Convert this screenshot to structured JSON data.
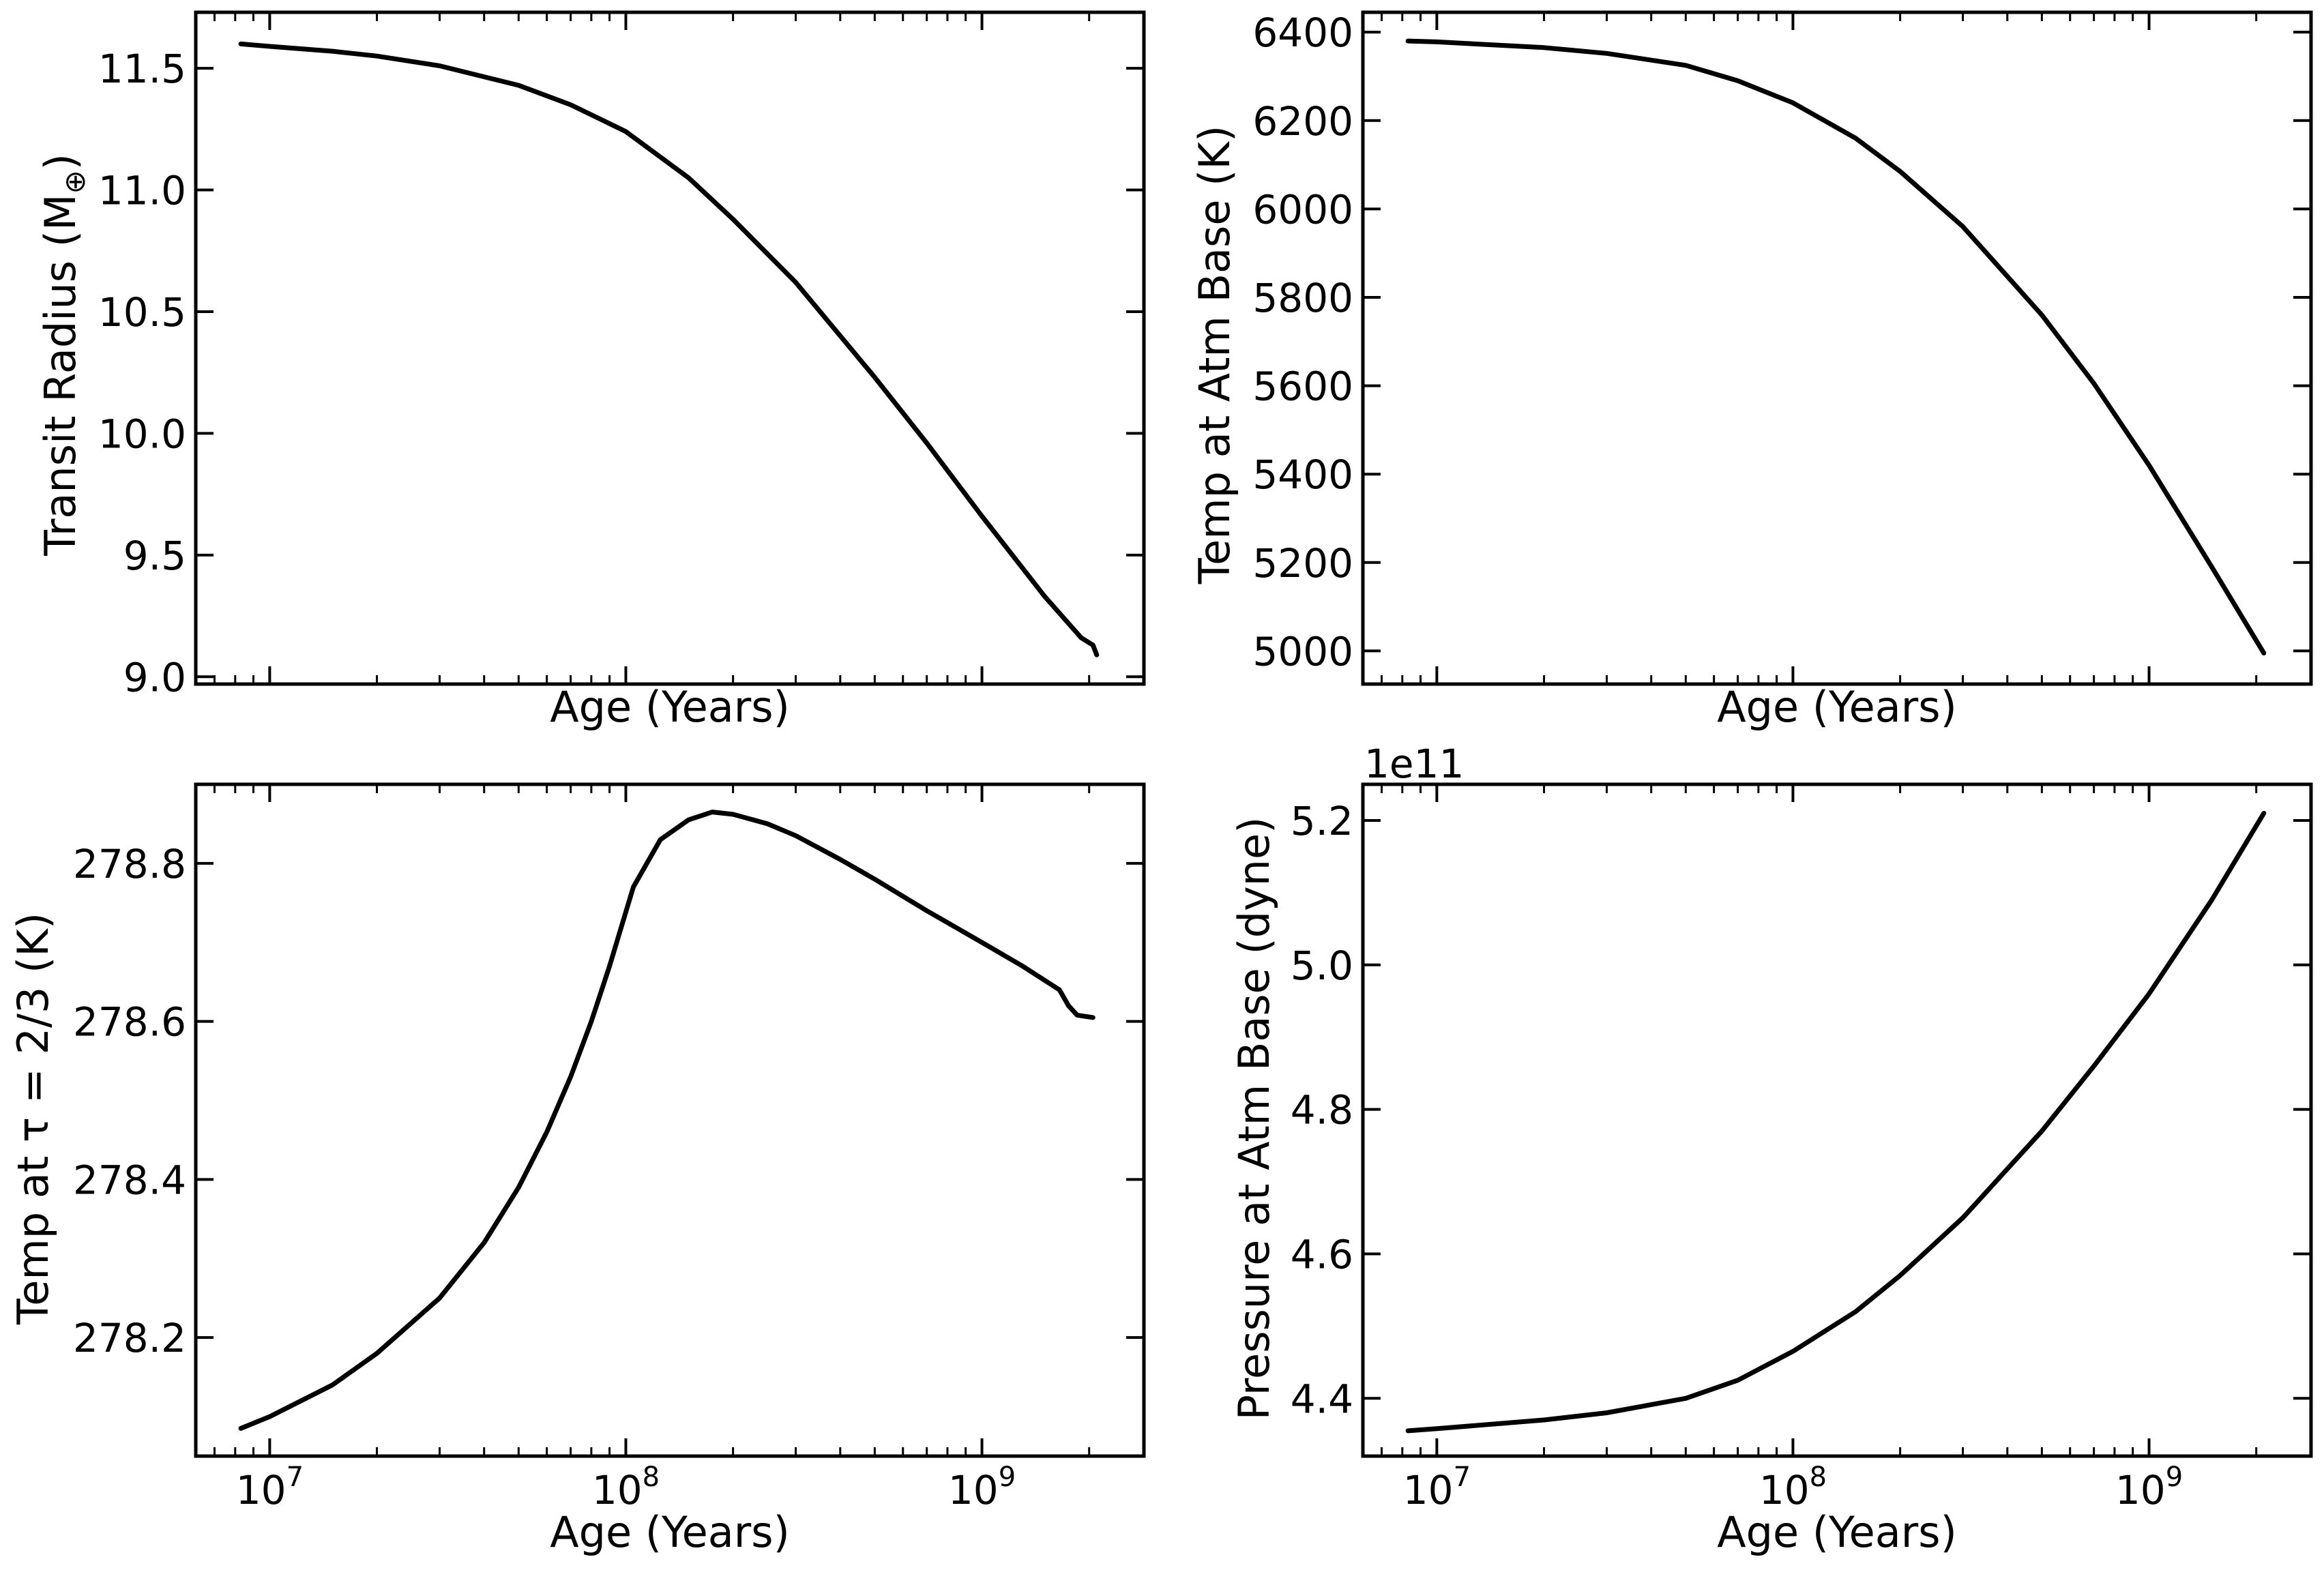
{
  "colors": {
    "line": "#000000",
    "axes": "#000000",
    "background": "#ffffff"
  },
  "chart_data": [
    {
      "type": "line",
      "title": "",
      "xlabel": "Age (Years)",
      "ylabel": "Transit Radius (M",
      "ylabel_subscript": "⊕",
      "ylabel_suffix": ")",
      "xscale": "log",
      "xlim": [
        6200000,
        2850000000
      ],
      "ylim": [
        8.97,
        11.73
      ],
      "xticks": [
        10000000,
        100000000,
        1000000000
      ],
      "xtick_labels_shown": false,
      "yticks": [
        9.0,
        9.5,
        10.0,
        10.5,
        11.0,
        11.5
      ],
      "ytick_labels": [
        "9.0",
        "9.5",
        "10.0",
        "10.5",
        "11.0",
        "11.5"
      ],
      "grid": false,
      "legend": "none",
      "series": [
        {
          "x": [
            8300000,
            10000000,
            15000000,
            20000000,
            30000000,
            50000000,
            70000000,
            100000000,
            150000000,
            200000000,
            300000000,
            500000000,
            700000000,
            1000000000,
            1500000000,
            1900000000,
            2050000000,
            2100000000
          ],
          "y": [
            11.6,
            11.59,
            11.57,
            11.55,
            11.51,
            11.43,
            11.35,
            11.24,
            11.05,
            10.88,
            10.62,
            10.23,
            9.96,
            9.66,
            9.33,
            9.16,
            9.13,
            9.09
          ]
        }
      ]
    },
    {
      "type": "line",
      "title": "",
      "xlabel": "Age (Years)",
      "ylabel": "Temp at Atm Base (K)",
      "xscale": "log",
      "xlim": [
        6200000,
        2850000000
      ],
      "ylim": [
        4925,
        6445
      ],
      "xticks": [
        10000000,
        100000000,
        1000000000
      ],
      "xtick_labels_shown": false,
      "yticks": [
        5000,
        5200,
        5400,
        5600,
        5800,
        6000,
        6200,
        6400
      ],
      "ytick_labels": [
        "5000",
        "5200",
        "5400",
        "5600",
        "5800",
        "6000",
        "6200",
        "6400"
      ],
      "grid": false,
      "legend": "none",
      "series": [
        {
          "x": [
            8300000,
            10000000,
            20000000,
            30000000,
            50000000,
            70000000,
            100000000,
            150000000,
            200000000,
            300000000,
            500000000,
            700000000,
            1000000000,
            1500000000,
            2100000000
          ],
          "y": [
            6380,
            6378,
            6365,
            6352,
            6325,
            6290,
            6240,
            6160,
            6085,
            5960,
            5760,
            5605,
            5420,
            5190,
            4995
          ]
        }
      ]
    },
    {
      "type": "line",
      "title": "",
      "xlabel": "Age (Years)",
      "ylabel": "Temp at τ = 2/3 (K)",
      "xscale": "log",
      "xlim": [
        6200000,
        2850000000
      ],
      "ylim": [
        278.05,
        278.9
      ],
      "xticks": [
        10000000,
        100000000,
        1000000000
      ],
      "xtick_labels": [
        "10",
        "10",
        "10"
      ],
      "xtick_exponents": [
        "7",
        "8",
        "9"
      ],
      "yticks": [
        278.2,
        278.4,
        278.6,
        278.8
      ],
      "ytick_labels": [
        "278.2",
        "278.4",
        "278.6",
        "278.8"
      ],
      "grid": false,
      "legend": "none",
      "series": [
        {
          "x": [
            8300000,
            10000000,
            15000000,
            20000000,
            30000000,
            40000000,
            50000000,
            60000000,
            70000000,
            80000000,
            90000000,
            105000000,
            125000000,
            150000000,
            175000000,
            200000000,
            250000000,
            300000000,
            400000000,
            500000000,
            700000000,
            1000000000,
            1300000000,
            1650000000,
            1750000000,
            1850000000,
            2050000000
          ],
          "y": [
            278.085,
            278.1,
            278.14,
            278.18,
            278.25,
            278.32,
            278.39,
            278.46,
            278.53,
            278.6,
            278.67,
            278.77,
            278.83,
            278.855,
            278.865,
            278.862,
            278.85,
            278.835,
            278.805,
            278.78,
            278.74,
            278.7,
            278.67,
            278.64,
            278.62,
            278.608,
            278.605
          ]
        }
      ]
    },
    {
      "type": "line",
      "title": "",
      "xlabel": "Age (Years)",
      "ylabel": "Pressure at Atm Base (dyne)",
      "offset_label": "1e11",
      "xscale": "log",
      "xlim": [
        6200000,
        2850000000
      ],
      "ylim": [
        4.32,
        5.25
      ],
      "xticks": [
        10000000,
        100000000,
        1000000000
      ],
      "xtick_labels": [
        "10",
        "10",
        "10"
      ],
      "xtick_exponents": [
        "7",
        "8",
        "9"
      ],
      "yticks": [
        4.4,
        4.6,
        4.8,
        5.0,
        5.2
      ],
      "ytick_labels": [
        "4.4",
        "4.6",
        "4.8",
        "5.0",
        "5.2"
      ],
      "grid": false,
      "legend": "none",
      "series": [
        {
          "x": [
            8300000,
            10000000,
            20000000,
            30000000,
            50000000,
            70000000,
            100000000,
            150000000,
            200000000,
            300000000,
            500000000,
            700000000,
            1000000000,
            1500000000,
            2100000000
          ],
          "y": [
            4.355,
            4.358,
            4.37,
            4.38,
            4.4,
            4.425,
            4.465,
            4.52,
            4.57,
            4.65,
            4.77,
            4.86,
            4.96,
            5.09,
            5.21
          ]
        }
      ]
    }
  ]
}
